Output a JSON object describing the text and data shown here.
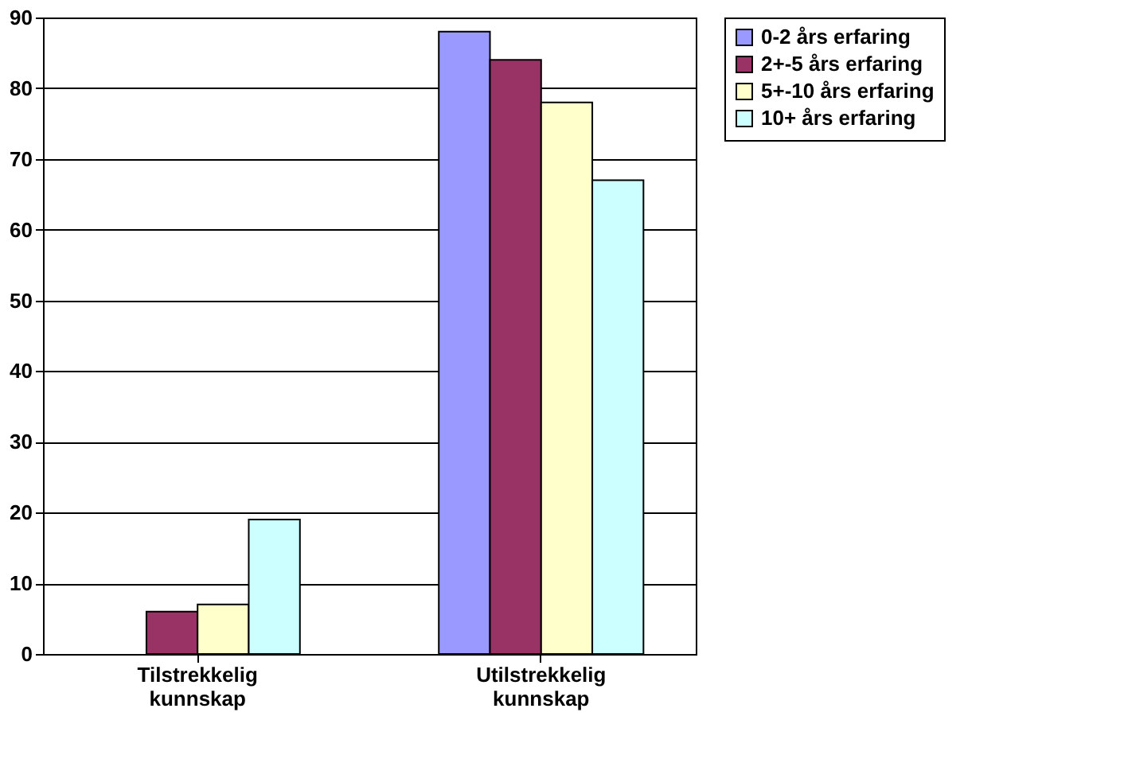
{
  "chart_data": {
    "type": "bar",
    "categories": [
      "Tilstrekkelig kunnskap",
      "Utilstrekkelig kunnskap"
    ],
    "series": [
      {
        "name": "0-2 års erfaring",
        "color": "#9999ff",
        "values": [
          0,
          88
        ]
      },
      {
        "name": "2+-5 års erfaring",
        "color": "#993366",
        "values": [
          6,
          84
        ]
      },
      {
        "name": "5+-10 års erfaring",
        "color": "#ffffcc",
        "values": [
          7,
          78
        ]
      },
      {
        "name": "10+ års erfaring",
        "color": "#ccffff",
        "values": [
          19,
          67
        ]
      }
    ],
    "ylim": [
      0,
      90
    ],
    "yticks": [
      0,
      10,
      20,
      30,
      40,
      50,
      60,
      70,
      80,
      90
    ],
    "grid": "y",
    "legend": "right"
  }
}
